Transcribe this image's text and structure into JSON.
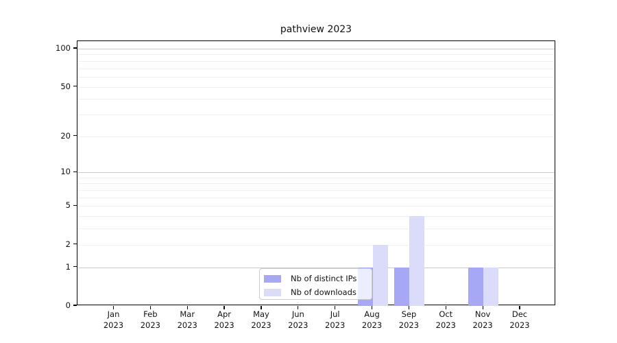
{
  "chart_data": {
    "type": "bar",
    "title": "pathview 2023",
    "x_tick_labels": [
      {
        "line1": "Jan",
        "line2": "2023"
      },
      {
        "line1": "Feb",
        "line2": "2023"
      },
      {
        "line1": "Mar",
        "line2": "2023"
      },
      {
        "line1": "Apr",
        "line2": "2023"
      },
      {
        "line1": "May",
        "line2": "2023"
      },
      {
        "line1": "Jun",
        "line2": "2023"
      },
      {
        "line1": "Jul",
        "line2": "2023"
      },
      {
        "line1": "Aug",
        "line2": "2023"
      },
      {
        "line1": "Sep",
        "line2": "2023"
      },
      {
        "line1": "Oct",
        "line2": "2023"
      },
      {
        "line1": "Nov",
        "line2": "2023"
      },
      {
        "line1": "Dec",
        "line2": "2023"
      }
    ],
    "y_scale": "log1p",
    "y_ticks": [
      0,
      1,
      2,
      5,
      10,
      20,
      50,
      100
    ],
    "y_tick_labels": [
      "0",
      "1",
      "2",
      "5",
      "10",
      "20",
      "50",
      "100"
    ],
    "grid": {
      "major_values": [
        1,
        10,
        100
      ],
      "minor_values": [
        2,
        3,
        4,
        5,
        6,
        7,
        8,
        9,
        20,
        30,
        40,
        50,
        60,
        70,
        80,
        90
      ],
      "major_color": "#c9c9c9",
      "minor_color": "#f0f0f0"
    },
    "series": [
      {
        "name": "Nb of distinct IPs",
        "color": "#a7a8f5",
        "values": [
          0,
          0,
          0,
          0,
          0,
          0,
          0,
          1,
          1,
          0,
          1,
          0
        ]
      },
      {
        "name": "Nb of downloads",
        "color": "#dbdcf9",
        "values": [
          0,
          0,
          0,
          0,
          0,
          0,
          0,
          2,
          4,
          0,
          1,
          0
        ]
      }
    ],
    "legend": {
      "entries": [
        "Nb of distinct IPs",
        "Nb of downloads"
      ],
      "position": "inside-lower-center"
    },
    "axis_color": "#000000",
    "background_color": "#ffffff"
  }
}
